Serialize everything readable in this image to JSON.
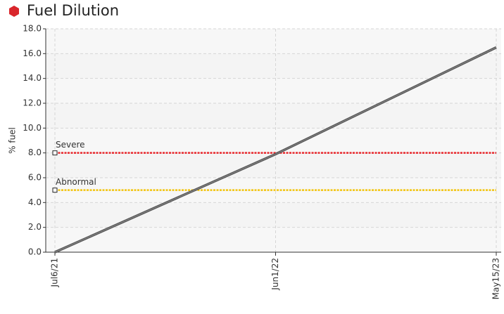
{
  "chart_data": {
    "type": "line",
    "title": "Fuel Dilution",
    "ylabel": "% fuel",
    "categories": [
      "Jul6/21",
      "Jun1/22",
      "May15/23"
    ],
    "series": [
      {
        "name": "Fuel Dilution",
        "color": "#555555",
        "values": [
          0,
          7.9,
          16.5
        ]
      }
    ],
    "thresholds": [
      {
        "name": "Severe",
        "value": 8,
        "color": "#e8262b"
      },
      {
        "name": "Abnormal",
        "value": 5,
        "color": "#f2c40f"
      }
    ],
    "ylim": [
      0,
      18
    ],
    "yticks": [
      {
        "value": 0,
        "label": "0.0"
      },
      {
        "value": 2,
        "label": "2.0"
      },
      {
        "value": 4,
        "label": "4.0"
      },
      {
        "value": 6,
        "label": "6.0"
      },
      {
        "value": 8,
        "label": "8.0"
      },
      {
        "value": 10,
        "label": "10.0"
      },
      {
        "value": 12,
        "label": "12.0"
      },
      {
        "value": 14,
        "label": "14.0"
      },
      {
        "value": 16,
        "label": "16.0"
      },
      {
        "value": 18,
        "label": "18.0"
      }
    ],
    "grid": true
  }
}
